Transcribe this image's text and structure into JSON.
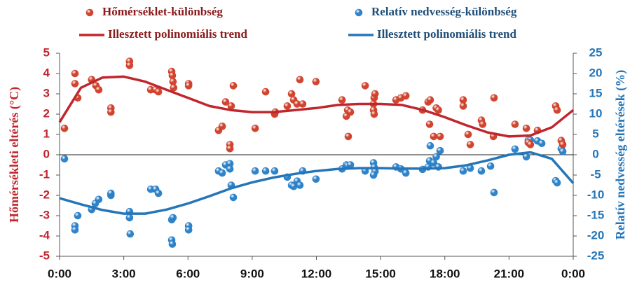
{
  "chart_data": {
    "type": "scatter",
    "y_label": "Hőmérsékleti eltérés (°C)",
    "y2_label": "Relatív nedvesség eltérések  (%)",
    "xlim": [
      0,
      24
    ],
    "xticks": [
      {
        "value": 0,
        "label": "0:00"
      },
      {
        "value": 3,
        "label": "3:00"
      },
      {
        "value": 6,
        "label": "6:00"
      },
      {
        "value": 9,
        "label": "9:00"
      },
      {
        "value": 12,
        "label": "12:00"
      },
      {
        "value": 15,
        "label": "15:00"
      },
      {
        "value": 18,
        "label": "18:00"
      },
      {
        "value": 21,
        "label": "21:00"
      },
      {
        "value": 24,
        "label": "0:00"
      }
    ],
    "ylim": [
      -5,
      5
    ],
    "yticks": [
      -5,
      -4,
      -3,
      -2,
      -1,
      0,
      1,
      2,
      3,
      4,
      5
    ],
    "y2lim": [
      -25,
      25
    ],
    "y2ticks": [
      -25,
      -20,
      -15,
      -10,
      -5,
      0,
      5,
      10,
      15,
      20,
      25
    ],
    "series": [
      {
        "name": "Hőmérséklet-különbség",
        "type": "scatter",
        "color": "#d0402a",
        "x": [
          0.23,
          0.72,
          0.72,
          0.85,
          1.5,
          1.7,
          1.83,
          2.4,
          2.4,
          3.27,
          3.27,
          4.26,
          4.49,
          4.62,
          5.24,
          5.27,
          5.3,
          5.33,
          6.03,
          6.03,
          7.43,
          7.6,
          7.76,
          7.96,
          7.96,
          8.02,
          8.12,
          9.14,
          9.63,
          10.05,
          10.08,
          10.64,
          10.84,
          10.94,
          11.1,
          11.23,
          11.36,
          11.98,
          13.2,
          13.4,
          13.46,
          13.49,
          13.59,
          14.28,
          14.67,
          14.7,
          14.74,
          14.67,
          14.7,
          15.72,
          15.95,
          16.18,
          16.96,
          17.22,
          17.32,
          17.29,
          17.48,
          17.6,
          17.7,
          17.78,
          18.86,
          18.86,
          19.09,
          19.19,
          19.71,
          19.77,
          20.27,
          20.3,
          21.28,
          21.81,
          21.9,
          22.0,
          22.33,
          23.18,
          23.25,
          23.44,
          23.51
        ],
        "values": [
          1.3,
          4.0,
          3.5,
          2.8,
          3.7,
          3.4,
          3.2,
          2.3,
          2.1,
          4.6,
          4.4,
          3.2,
          3.2,
          3.1,
          4.1,
          3.9,
          3.6,
          3.3,
          3.5,
          3.4,
          1.2,
          1.4,
          2.6,
          0.5,
          0.3,
          2.4,
          3.4,
          1.3,
          3.1,
          2.0,
          2.1,
          2.4,
          3.0,
          2.7,
          2.5,
          3.7,
          2.5,
          3.6,
          2.7,
          1.9,
          2.2,
          0.9,
          2.1,
          3.4,
          2.5,
          2.8,
          3.0,
          2.2,
          2.0,
          2.7,
          2.8,
          2.9,
          2.2,
          2.6,
          2.7,
          1.5,
          0.9,
          2.3,
          2.2,
          0.9,
          2.7,
          2.4,
          1.0,
          0.5,
          1.7,
          1.5,
          0.9,
          2.8,
          1.5,
          1.3,
          0.6,
          0.5,
          1.2,
          2.4,
          2.2,
          0.7,
          0.5
        ]
      },
      {
        "name": "Relatív nedvesség-különbség",
        "type": "scatter",
        "axis": "y2",
        "color": "#2a80c8",
        "x": [
          0.23,
          0.72,
          0.72,
          0.85,
          1.5,
          1.67,
          1.83,
          2.4,
          2.4,
          3.27,
          3.27,
          3.3,
          4.26,
          4.49,
          4.62,
          5.24,
          5.3,
          5.24,
          5.27,
          6.03,
          6.03,
          7.43,
          7.6,
          7.76,
          7.96,
          7.96,
          8.02,
          8.12,
          9.14,
          9.63,
          10.05,
          10.64,
          10.84,
          10.94,
          11.1,
          11.23,
          11.36,
          11.98,
          13.2,
          13.4,
          13.46,
          13.59,
          14.28,
          14.67,
          14.7,
          14.74,
          14.67,
          15.72,
          15.95,
          16.18,
          16.96,
          17.22,
          17.32,
          17.29,
          17.48,
          17.6,
          17.7,
          17.78,
          18.86,
          19.19,
          19.71,
          20.14,
          20.3,
          21.28,
          21.81,
          21.9,
          22.0,
          22.33,
          22.53,
          23.18,
          23.25,
          23.44,
          23.51
        ],
        "values": [
          -1,
          -17.5,
          -18.5,
          -15,
          -13.5,
          -12,
          -11,
          -10,
          -9.5,
          -14,
          -15.5,
          -19.5,
          -8.5,
          -8.5,
          -9.5,
          -16,
          -15.5,
          -21,
          -22,
          -17.5,
          -18.5,
          -4,
          -4.5,
          -2.5,
          -2.2,
          -3.5,
          -7.5,
          -10.5,
          -4,
          -4,
          -4,
          -5.5,
          -7.5,
          -7.8,
          -6.5,
          -7.5,
          -4,
          -6,
          -3.5,
          -2.5,
          -2.7,
          -2.5,
          -4,
          -2,
          -3.1,
          -4.1,
          -5,
          -3,
          -3.5,
          -4.5,
          -3.6,
          -3,
          2.2,
          -1.5,
          -2,
          -0.5,
          -3,
          1,
          -4,
          -3.3,
          -4,
          -2.8,
          -9.3,
          1.4,
          -0.5,
          3.6,
          3.6,
          3.4,
          2.8,
          -6.4,
          -6.9,
          1.5,
          0.8
        ]
      },
      {
        "name": "Illesztett polinomiális trend",
        "type": "line",
        "color": "#c0262d",
        "x": [
          0,
          1,
          2,
          3,
          4,
          5,
          6,
          7,
          8,
          9,
          10,
          11,
          12,
          13,
          14,
          15,
          16,
          17,
          18,
          19,
          20,
          21,
          22,
          23,
          24
        ],
        "values": [
          1.6,
          3.3,
          3.8,
          3.85,
          3.6,
          3.2,
          2.8,
          2.4,
          2.2,
          2.1,
          2.1,
          2.2,
          2.3,
          2.45,
          2.5,
          2.5,
          2.45,
          2.2,
          1.85,
          1.45,
          1.1,
          0.9,
          0.95,
          1.35,
          2.2
        ]
      },
      {
        "name": "Illesztett polinomiális trend",
        "type": "line",
        "axis": "y2",
        "color": "#2576b8",
        "x": [
          0,
          1,
          2,
          3,
          4,
          5,
          6,
          7,
          8,
          9,
          10,
          11,
          12,
          13,
          14,
          15,
          16,
          17,
          18,
          19,
          20,
          21,
          22,
          23,
          24
        ],
        "values": [
          -10.7,
          -12.2,
          -13.6,
          -14.5,
          -14.5,
          -13.5,
          -12,
          -10.2,
          -8.3,
          -6.8,
          -5.6,
          -4.7,
          -4.0,
          -3.5,
          -3.3,
          -3.3,
          -3.4,
          -3.4,
          -3.3,
          -2.6,
          -1.4,
          0,
          0.6,
          -1,
          -7
        ]
      }
    ]
  }
}
